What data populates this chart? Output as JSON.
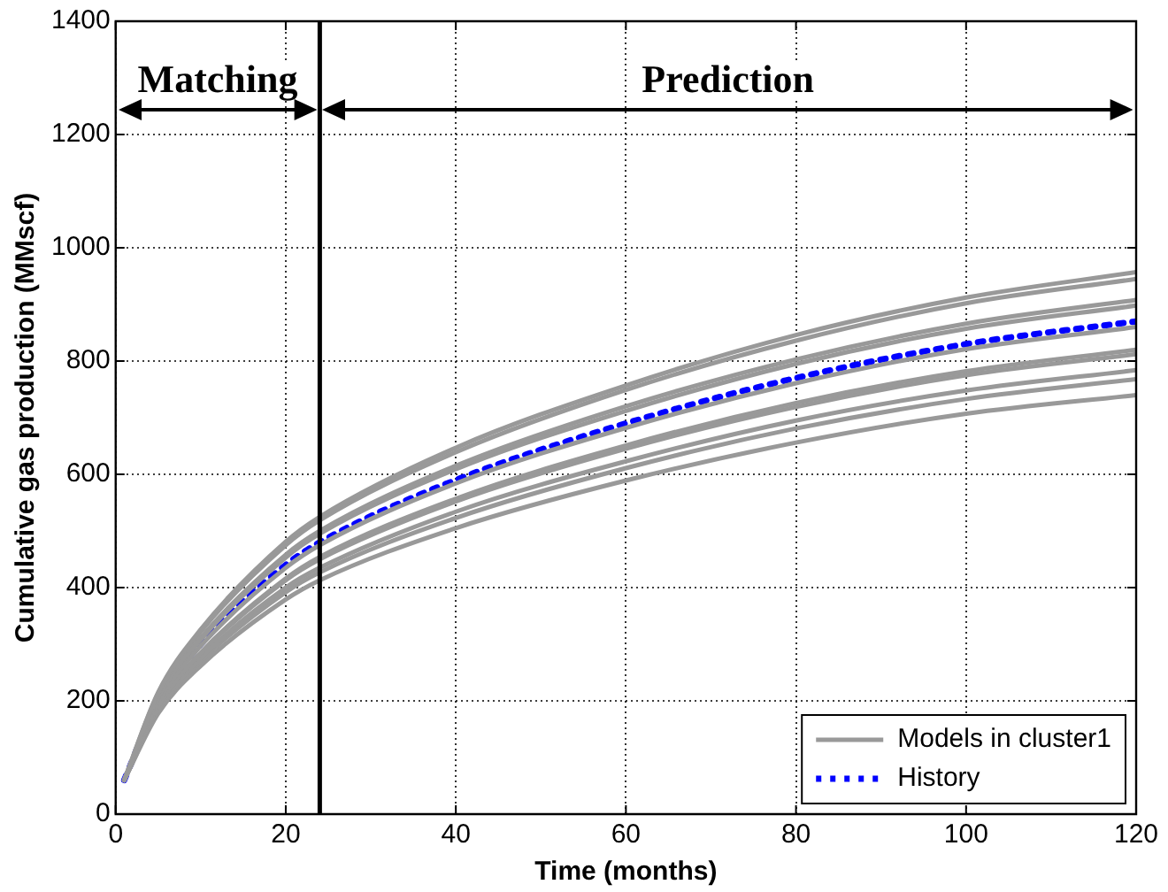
{
  "chart_data": {
    "type": "line",
    "xlabel": "Time (months)",
    "ylabel": "Cumulative gas production (MMscf)",
    "x": [
      1,
      5,
      10,
      20,
      24,
      40,
      60,
      80,
      100,
      120
    ],
    "xlim": [
      0,
      120
    ],
    "xticks": [
      0,
      20,
      40,
      60,
      80,
      100,
      120
    ],
    "ylim": [
      0,
      1400
    ],
    "yticks": [
      0,
      200,
      400,
      600,
      800,
      1000,
      1200,
      1400
    ],
    "grid": true,
    "legend": "bottom right",
    "marker": "none",
    "series": [
      {
        "name": "Models in cluster1",
        "color": "#999999",
        "line_style": "solid",
        "values": [
          60,
          215,
          326,
          481,
          525,
          647,
          757,
          846,
          912,
          957
        ]
      },
      {
        "color": "#999999",
        "line_style": "solid",
        "values": [
          60,
          213,
          322,
          475,
          519,
          639,
          749,
          836,
          902,
          945
        ]
      },
      {
        "color": "#999999",
        "line_style": "solid",
        "values": [
          60,
          207,
          311,
          458,
          500,
          615,
          720,
          803,
          866,
          908
        ]
      },
      {
        "color": "#999999",
        "line_style": "solid",
        "values": [
          60,
          205,
          308,
          453,
          495,
          609,
          712,
          795,
          857,
          898
        ]
      },
      {
        "color": "#999999",
        "line_style": "solid",
        "values": [
          60,
          198,
          297,
          435,
          475,
          584,
          682,
          761,
          821,
          860
        ]
      },
      {
        "color": "#999999",
        "line_style": "solid",
        "values": [
          60,
          191,
          285,
          416,
          454,
          557,
          651,
          726,
          782,
          820
        ]
      },
      {
        "color": "#999999",
        "line_style": "solid",
        "values": [
          60,
          190,
          283,
          413,
          450,
          552,
          645,
          719,
          775,
          812
        ]
      },
      {
        "color": "#999999",
        "line_style": "solid",
        "values": [
          60,
          185,
          275,
          400,
          435,
          534,
          623,
          695,
          748,
          784
        ]
      },
      {
        "color": "#999999",
        "line_style": "solid",
        "values": [
          60,
          182,
          270,
          392,
          427,
          523,
          611,
          681,
          733,
          768
        ]
      },
      {
        "color": "#999999",
        "line_style": "solid",
        "values": [
          60,
          178,
          262,
          379,
          413,
          505,
          589,
          656,
          707,
          740
        ]
      },
      {
        "name": "History",
        "color": "#0000ff",
        "line_style": "dotted",
        "values": [
          60,
          200,
          300,
          440,
          480,
          590,
          690,
          770,
          830,
          870
        ]
      }
    ],
    "ref_lines": [
      {
        "axis": "x",
        "value": 24,
        "color": "#000000"
      }
    ],
    "annotations": [
      "Matching",
      "Prediction"
    ]
  }
}
